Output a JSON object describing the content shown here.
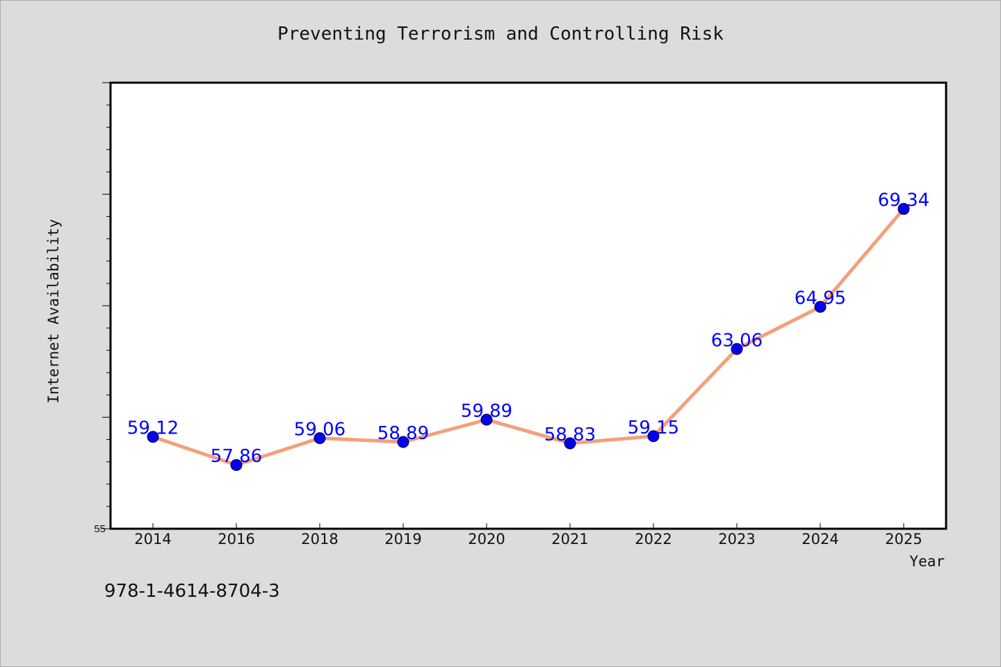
{
  "chart_data": {
    "type": "line",
    "title": "Preventing Terrorism and Controlling Risk",
    "xlabel": "Year",
    "ylabel": "Internet Availability",
    "categories": [
      "2014",
      "2016",
      "2018",
      "2019",
      "2020",
      "2021",
      "2022",
      "2023",
      "2024",
      "2025"
    ],
    "series": [
      {
        "values": [
          59.12,
          57.86,
          59.06,
          58.89,
          59.89,
          58.83,
          59.15,
          63.06,
          64.95,
          69.34
        ],
        "data_labels": [
          "59.12",
          "57.86",
          "59.06",
          "58.89",
          "59.89",
          "58.83",
          "59.15",
          "63.06",
          "64.95",
          "69.34"
        ],
        "line_color": "#f4a07a",
        "marker_color": "#0000ee"
      }
    ],
    "ylim": [
      55,
      75
    ],
    "ytick_labels": [
      "55"
    ],
    "grid": false,
    "label_color": "#0000ff"
  },
  "footer": {
    "isbn": "978-1-4614-8704-3"
  }
}
